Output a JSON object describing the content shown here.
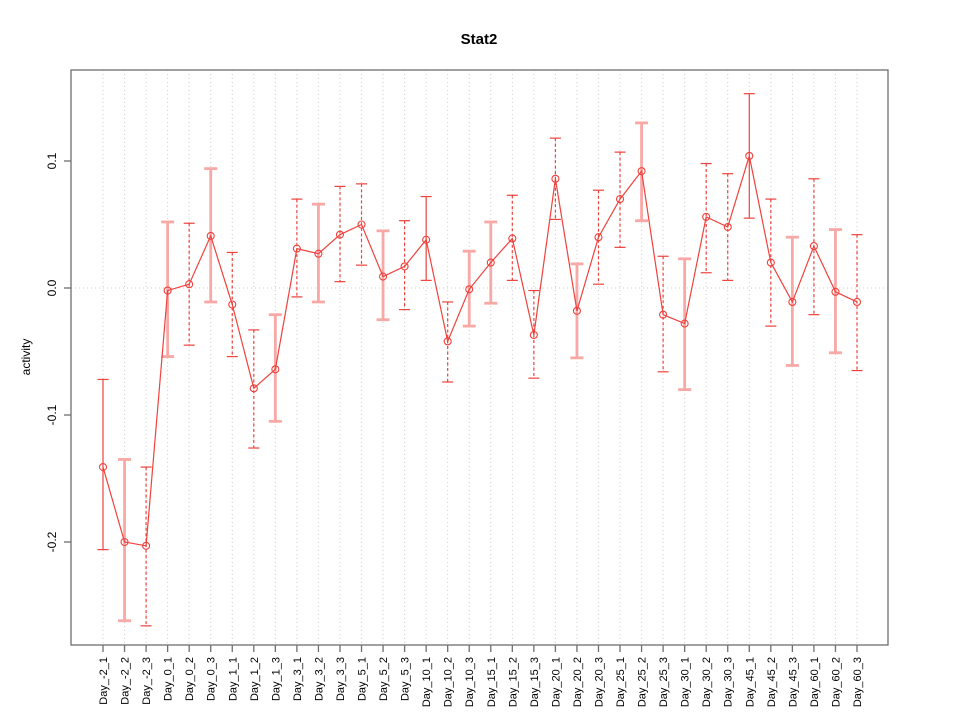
{
  "chart_data": {
    "type": "line",
    "title": "Stat2",
    "xlabel": "",
    "ylabel": "activity",
    "ylim": [
      -0.285,
      0.172
    ],
    "yticks": [
      0.1,
      0.0,
      -0.1,
      -0.2
    ],
    "grid": "vertical dotted gridline at every category; dotted horizontal reference line at y=0",
    "legend": "none",
    "marker": "open-circle",
    "categories": [
      "Day_-2_1",
      "Day_-2_2",
      "Day_-2_3",
      "Day_0_1",
      "Day_0_2",
      "Day_0_3",
      "Day_1_1",
      "Day_1_2",
      "Day_1_3",
      "Day_3_1",
      "Day_3_2",
      "Day_3_3",
      "Day_5_1",
      "Day_5_2",
      "Day_5_3",
      "Day_10_1",
      "Day_10_2",
      "Day_10_3",
      "Day_15_1",
      "Day_15_2",
      "Day_15_3",
      "Day_20_1",
      "Day_20_2",
      "Day_20_3",
      "Day_25_1",
      "Day_25_2",
      "Day_25_3",
      "Day_30_1",
      "Day_30_2",
      "Day_30_3",
      "Day_45_1",
      "Day_45_2",
      "Day_45_3",
      "Day_60_1",
      "Day_60_2",
      "Day_60_3"
    ],
    "series": [
      {
        "name": "activity",
        "values": [
          -0.141,
          -0.2,
          -0.203,
          -0.002,
          0.003,
          0.041,
          -0.013,
          -0.079,
          -0.064,
          0.031,
          0.027,
          0.042,
          0.05,
          0.009,
          0.017,
          0.038,
          -0.042,
          -0.001,
          0.02,
          0.039,
          -0.037,
          0.086,
          -0.018,
          0.04,
          0.07,
          0.092,
          -0.021,
          -0.028,
          0.056,
          0.048,
          0.104,
          0.02,
          -0.011,
          0.033,
          -0.003,
          -0.011
        ],
        "lower": [
          -0.206,
          -0.262,
          -0.266,
          -0.054,
          -0.045,
          -0.011,
          -0.054,
          -0.126,
          -0.105,
          -0.007,
          -0.011,
          0.005,
          0.018,
          -0.025,
          -0.017,
          0.006,
          -0.074,
          -0.03,
          -0.012,
          0.006,
          -0.071,
          0.054,
          -0.055,
          0.003,
          0.032,
          0.053,
          -0.066,
          -0.08,
          0.012,
          0.006,
          0.055,
          -0.03,
          -0.061,
          -0.021,
          -0.051,
          -0.065
        ],
        "upper": [
          -0.072,
          -0.135,
          -0.141,
          0.052,
          0.051,
          0.094,
          0.028,
          -0.033,
          -0.021,
          0.07,
          0.066,
          0.08,
          0.082,
          0.045,
          0.053,
          0.072,
          -0.011,
          0.029,
          0.052,
          0.073,
          -0.002,
          0.118,
          0.019,
          0.077,
          0.107,
          0.13,
          0.025,
          0.023,
          0.098,
          0.09,
          0.153,
          0.07,
          0.04,
          0.086,
          0.046,
          0.042
        ],
        "bar_styles": [
          "red_solid",
          "pink",
          "red",
          "pink",
          "red",
          "pink",
          "red",
          "red",
          "pink",
          "red",
          "pink",
          "red",
          "red",
          "pink",
          "red",
          "red_solid",
          "red",
          "pink",
          "pink",
          "red",
          "red",
          "red",
          "pink",
          "red",
          "red",
          "pink",
          "red",
          "pink",
          "red",
          "red",
          "red_solid",
          "red",
          "pink",
          "red",
          "pink",
          "red"
        ]
      }
    ],
    "colors": {
      "line": "#ee423d",
      "marker": "#ee423d",
      "error_bar_red": "#ee423d",
      "error_bar_pink": "#f8a8a5",
      "grid": "#cdcdcd",
      "box": "#6e6e6e",
      "text": "#000000",
      "background": "#ffffff"
    }
  }
}
